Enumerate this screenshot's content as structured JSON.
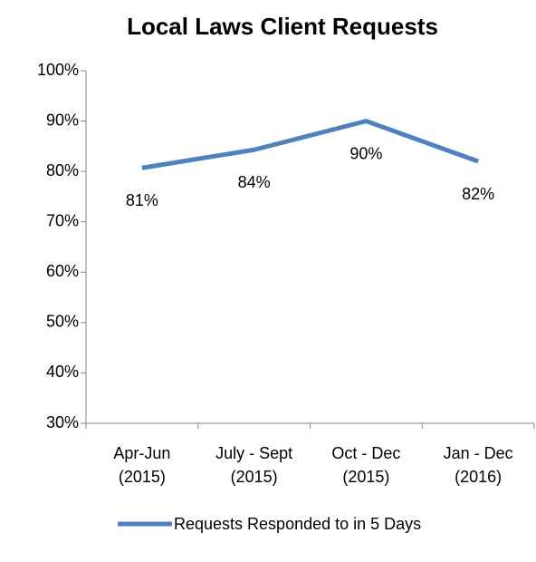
{
  "chart_data": {
    "type": "line",
    "title": "Local Laws Client Requests",
    "categories": [
      "Apr-Jun\n(2015)",
      "July - Sept\n(2015)",
      "Oct - Dec\n(2015)",
      "Jan - Dec\n(2016)"
    ],
    "series": [
      {
        "name": "Requests Responded to in 5 Days",
        "color": "#4f81bd",
        "values": [
          80.7,
          84.3,
          90,
          82
        ],
        "value_labels": [
          "81%",
          "84%",
          "90%",
          "82%"
        ]
      }
    ],
    "ylim": [
      30,
      100
    ],
    "yticks": [
      {
        "value": 30,
        "label": "30%"
      },
      {
        "value": 40,
        "label": "40%"
      },
      {
        "value": 50,
        "label": "50%"
      },
      {
        "value": 60,
        "label": "60%"
      },
      {
        "value": 70,
        "label": "70%"
      },
      {
        "value": 80,
        "label": "80%"
      },
      {
        "value": 90,
        "label": "90%"
      },
      {
        "value": 100,
        "label": "100%"
      }
    ],
    "legend": "bottom"
  }
}
